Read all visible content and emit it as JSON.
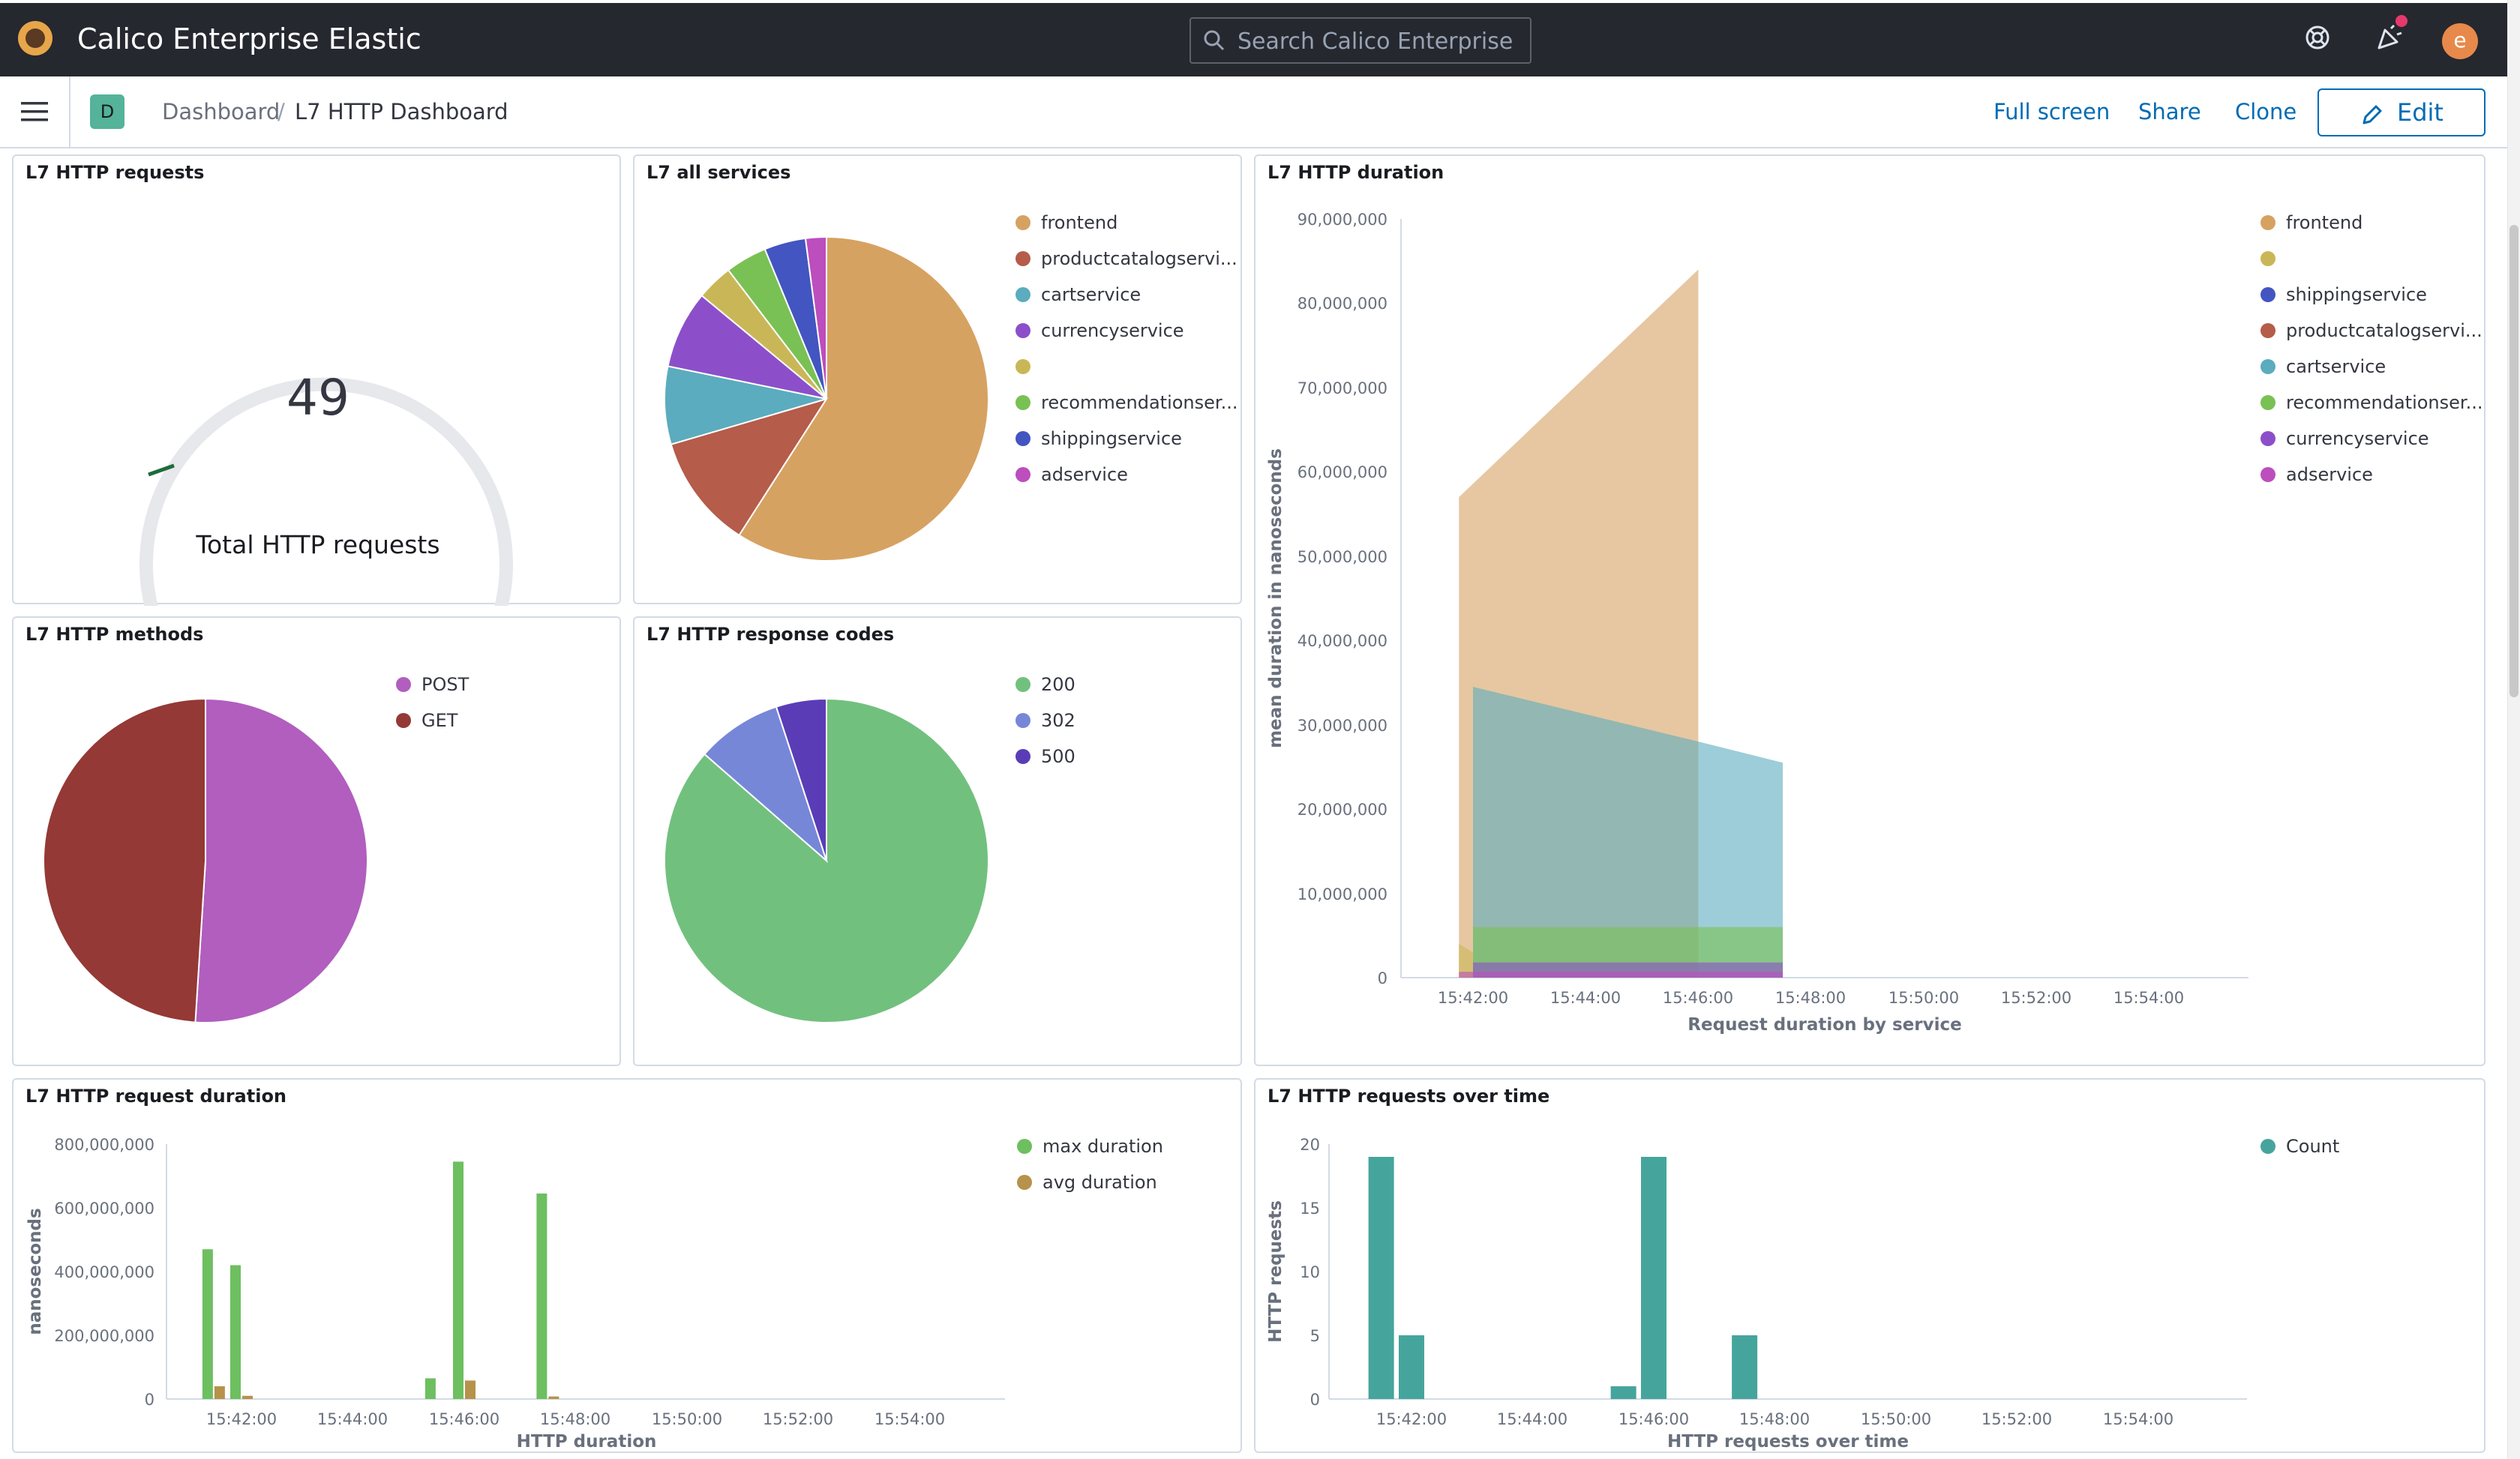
{
  "app": {
    "title": "Calico Enterprise Elastic",
    "search_placeholder": "Search Calico Enterprise",
    "avatar_initial": "e"
  },
  "subbar": {
    "space_initial": "D",
    "breadcrumbs": [
      "Dashboard",
      "L7 HTTP Dashboard"
    ],
    "actions": {
      "full_screen": "Full screen",
      "share": "Share",
      "clone": "Clone",
      "edit": "Edit"
    }
  },
  "colors": {
    "frontend": "#d6a262",
    "productcatalogservice": "#b55c4a",
    "cartservice": "#5bacbe",
    "currencyservice": "#8c4fc9",
    "unnamed": "#c9b757",
    "recommendationservice": "#79c154",
    "shippingservice": "#4355c0",
    "adservice": "#bd4ebd",
    "post": "#b15ebf",
    "get": "#943935",
    "200": "#72c07e",
    "302": "#7787d8",
    "500": "#5a3db6",
    "max": "#6dbf60",
    "avg": "#b6924a",
    "count": "#45a59c"
  },
  "panels": {
    "requests": {
      "title": "L7 HTTP requests",
      "value": "49",
      "label": "Total HTTP requests"
    },
    "services": {
      "title": "L7 all services"
    },
    "duration": {
      "title": "L7 HTTP duration"
    },
    "methods": {
      "title": "L7 HTTP methods"
    },
    "codes": {
      "title": "L7 HTTP response codes"
    },
    "reqdur": {
      "title": "L7 HTTP request duration"
    },
    "overtime": {
      "title": "L7 HTTP requests over time"
    }
  },
  "chart_data": [
    {
      "id": "services",
      "type": "pie",
      "legend": [
        "frontend",
        "productcatalogservi...",
        "cartservice",
        "currencyservice",
        "",
        "recommendationser...",
        "shippingservice",
        "adservice"
      ],
      "values": [
        57,
        11,
        7.5,
        7.5,
        3.5,
        4,
        4,
        2
      ]
    },
    {
      "id": "methods",
      "type": "pie",
      "legend": [
        "POST",
        "GET"
      ],
      "values": [
        51,
        49
      ]
    },
    {
      "id": "codes",
      "type": "pie",
      "legend": [
        "200",
        "302",
        "500"
      ],
      "values": [
        86,
        8.5,
        5
      ]
    },
    {
      "id": "duration",
      "type": "area",
      "title": "Request duration by service",
      "ylabel": "mean duration in nanoseconds",
      "x_ticks": [
        "15:42:00",
        "15:44:00",
        "15:46:00",
        "15:48:00",
        "15:50:00",
        "15:52:00",
        "15:54:00"
      ],
      "y_ticks": [
        "0",
        "10,000,000",
        "20,000,000",
        "30,000,000",
        "40,000,000",
        "50,000,000",
        "60,000,000",
        "70,000,000",
        "80,000,000",
        "90,000,000"
      ],
      "ylim": [
        0,
        90000000
      ],
      "legend": [
        "frontend",
        "",
        "shippingservice",
        "productcatalogservi...",
        "cartservice",
        "recommendationser...",
        "currencyservice",
        "adservice"
      ],
      "series": [
        {
          "key": "frontend",
          "x": [
            "15:41:45",
            "15:46:00"
          ],
          "y": [
            57000000,
            84000000
          ]
        },
        {
          "key": "cartservice",
          "x": [
            "15:42:00",
            "15:46:00",
            "15:47:30"
          ],
          "y": [
            34500000,
            28000000,
            25500000
          ]
        },
        {
          "key": "recommendationservice",
          "x": [
            "15:42:00",
            "15:47:30"
          ],
          "y": [
            6000000,
            6000000
          ]
        },
        {
          "key": "unnamed",
          "x": [
            "15:41:45",
            "15:42:00"
          ],
          "y": [
            4000000,
            3000000
          ]
        },
        {
          "key": "currencyservice",
          "x": [
            "15:42:00",
            "15:47:30"
          ],
          "y": [
            1800000,
            1800000
          ]
        },
        {
          "key": "adservice",
          "x": [
            "15:41:45",
            "15:47:30"
          ],
          "y": [
            700000,
            700000
          ]
        }
      ]
    },
    {
      "id": "reqdur",
      "type": "bar",
      "xlabel": "HTTP duration",
      "ylabel": "nanoseconds",
      "x_ticks": [
        "15:42:00",
        "15:44:00",
        "15:46:00",
        "15:48:00",
        "15:50:00",
        "15:52:00",
        "15:54:00"
      ],
      "y_ticks": [
        "0",
        "200,000,000",
        "400,000,000",
        "600,000,000",
        "800,000,000"
      ],
      "ylim": [
        0,
        800000000
      ],
      "legend": [
        "max duration",
        "avg duration"
      ],
      "series": [
        {
          "name": "max duration",
          "x": [
            "15:41:30",
            "15:42:00",
            "15:45:30",
            "15:46:00",
            "15:47:30"
          ],
          "y": [
            470000000,
            420000000,
            65000000,
            745000000,
            645000000
          ]
        },
        {
          "name": "avg duration",
          "x": [
            "15:41:30",
            "15:42:00",
            "15:45:30",
            "15:46:00",
            "15:47:30"
          ],
          "y": [
            40000000,
            10000000,
            0,
            58000000,
            8000000
          ]
        }
      ]
    },
    {
      "id": "overtime",
      "type": "bar",
      "xlabel": "HTTP requests over time",
      "ylabel": "HTTP requests",
      "x_ticks": [
        "15:42:00",
        "15:44:00",
        "15:46:00",
        "15:48:00",
        "15:50:00",
        "15:52:00",
        "15:54:00"
      ],
      "y_ticks": [
        "0",
        "5",
        "10",
        "15",
        "20"
      ],
      "ylim": [
        0,
        20
      ],
      "legend": [
        "Count"
      ],
      "series": [
        {
          "name": "Count",
          "x": [
            "15:41:30",
            "15:42:00",
            "15:45:30",
            "15:46:00",
            "15:47:30"
          ],
          "y": [
            19,
            5,
            1,
            19,
            5
          ]
        }
      ]
    }
  ]
}
